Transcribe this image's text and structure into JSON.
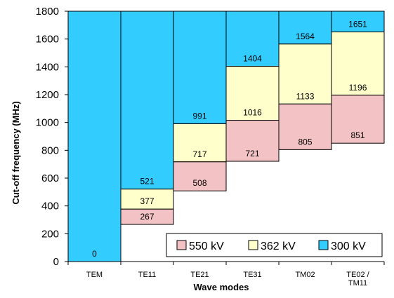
{
  "chart_data": {
    "type": "bar",
    "subtype": "floating-stacked",
    "xlabel": "Wave modes",
    "ylabel": "Cut-off frequency (MHz)",
    "ylim": [
      0,
      1800
    ],
    "yticks": [
      0,
      200,
      400,
      600,
      800,
      1000,
      1200,
      1400,
      1600,
      1800
    ],
    "grid": false,
    "legend_position": "bottom-right",
    "categories": [
      {
        "label": "TEM",
        "label_lines": [
          "TEM"
        ]
      },
      {
        "label": "TE11",
        "label_lines": [
          "TE11"
        ]
      },
      {
        "label": "TE21",
        "label_lines": [
          "TE21"
        ]
      },
      {
        "label": "TE31",
        "label_lines": [
          "TE31"
        ]
      },
      {
        "label": "TM02",
        "label_lines": [
          "TM02"
        ]
      },
      {
        "label": "TE02 / TM11",
        "label_lines": [
          "TE02 /",
          "TM11"
        ]
      }
    ],
    "series": [
      {
        "name": "550 kV",
        "color": "#f2c2c4",
        "values": [
          0,
          267,
          508,
          721,
          805,
          851
        ]
      },
      {
        "name": "362 kV",
        "color": "#ffffcc",
        "values": [
          0,
          377,
          717,
          1016,
          1133,
          1196
        ]
      },
      {
        "name": "300 kV",
        "color": "#33ccff",
        "values": [
          0,
          521,
          991,
          1404,
          1564,
          1651
        ]
      }
    ],
    "legend": [
      "550 kV",
      "362 kV",
      "300 kV"
    ]
  }
}
